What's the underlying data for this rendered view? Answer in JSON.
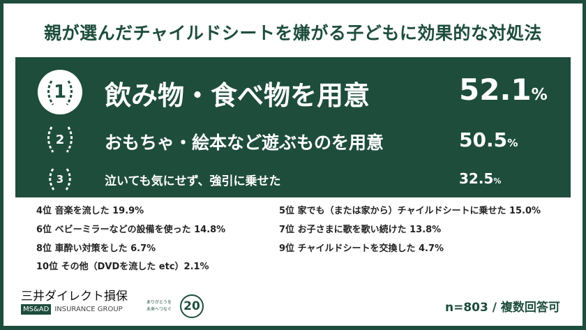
{
  "title": "親が選んだチャイルドシートを嫌がる子どもに効果的な対処法",
  "top3": [
    {
      "rank": "1",
      "label": "飲み物・食べ物を用意",
      "value": "52.1",
      "unit": "%"
    },
    {
      "rank": "2",
      "label": "おもちゃ・絵本など遊ぶものを用意",
      "value": "50.5",
      "unit": "%"
    },
    {
      "rank": "3",
      "label": "泣いても気にせず、強引に乗せた",
      "value": "32.5",
      "unit": "%"
    }
  ],
  "others": [
    {
      "text": "4位 音楽を流した 19.9%"
    },
    {
      "text": "5位 家でも（または家から）チャイルドシートに乗せた  15.0%"
    },
    {
      "text": "6位 ベビーミラーなどの設備を使った 14.8%"
    },
    {
      "text": "7位 お子さまに歌を歌い続けた 13.8%"
    },
    {
      "text": "8位 車酔い対策をした 6.7%"
    },
    {
      "text": "9位 チャイルドシートを交換した 4.7%"
    },
    {
      "text": "10位 その他（DVDを流した etc）2.1%"
    }
  ],
  "footer": {
    "brand": "三井ダイレクト損保",
    "group_badge": "MS&AD",
    "group": "INSURANCE GROUP",
    "slogan_1": "ありがとうを",
    "slogan_2": "未来へつなぐ",
    "anniversary": "20",
    "note": "n=803 / 複数回答可"
  },
  "colors": {
    "brand_green": "#1e4d3c",
    "text": "#222222",
    "background": "#ffffff"
  },
  "chart_data": {
    "type": "table",
    "title": "親が選んだチャイルドシートを嫌がる子どもに効果的な対処法",
    "categories": [
      "飲み物・食べ物を用意",
      "おもちゃ・絵本など遊ぶものを用意",
      "泣いても気にせず、強引に乗せた",
      "音楽を流した",
      "家でも（または家から）チャイルドシートに乗せた",
      "ベビーミラーなどの設備を使った",
      "お子さまに歌を歌い続けた",
      "車酔い対策をした",
      "チャイルドシートを交換した",
      "その他（DVDを流した etc）"
    ],
    "values": [
      52.1,
      50.5,
      32.5,
      19.9,
      15.0,
      14.8,
      13.8,
      6.7,
      4.7,
      2.1
    ],
    "unit": "%",
    "note": "n=803 / 複数回答可"
  }
}
